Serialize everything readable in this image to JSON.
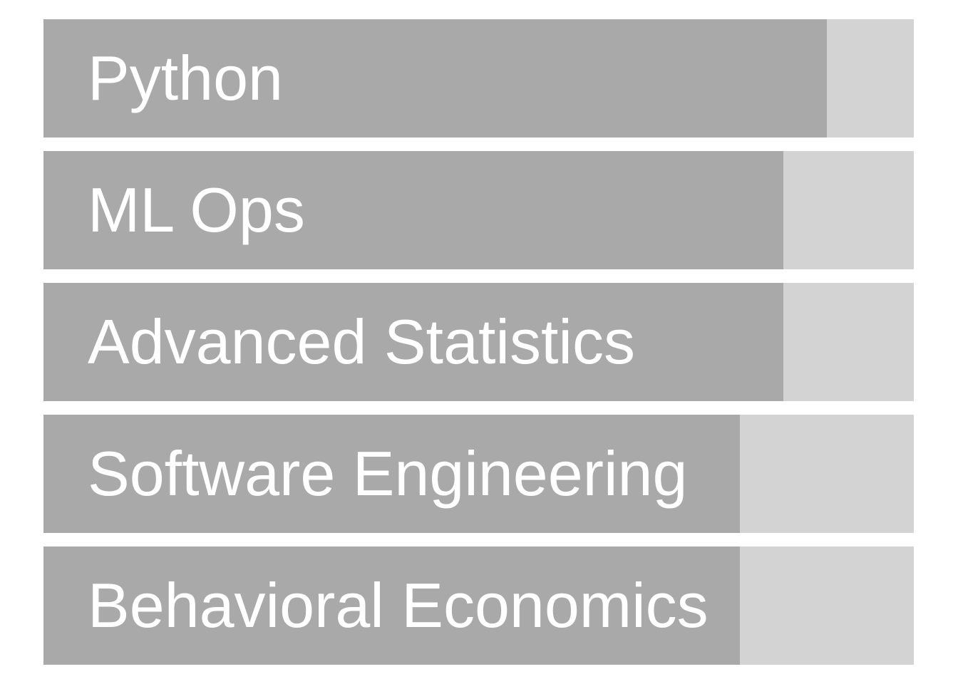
{
  "colors": {
    "background": "#ffffff",
    "track": "#d3d3d3",
    "fill": "#a9a9a9",
    "label": "#ffffff"
  },
  "chart_data": {
    "type": "bar",
    "orientation": "horizontal",
    "categories": [
      "Python",
      "ML Ops",
      "Advanced Statistics",
      "Software Engineering",
      "Behavioral Economics"
    ],
    "values": [
      0.9,
      0.85,
      0.85,
      0.8,
      0.8
    ],
    "xlim": [
      0,
      1
    ],
    "title": "",
    "xlabel": "",
    "ylabel": "",
    "grid": false,
    "legend": "none"
  }
}
